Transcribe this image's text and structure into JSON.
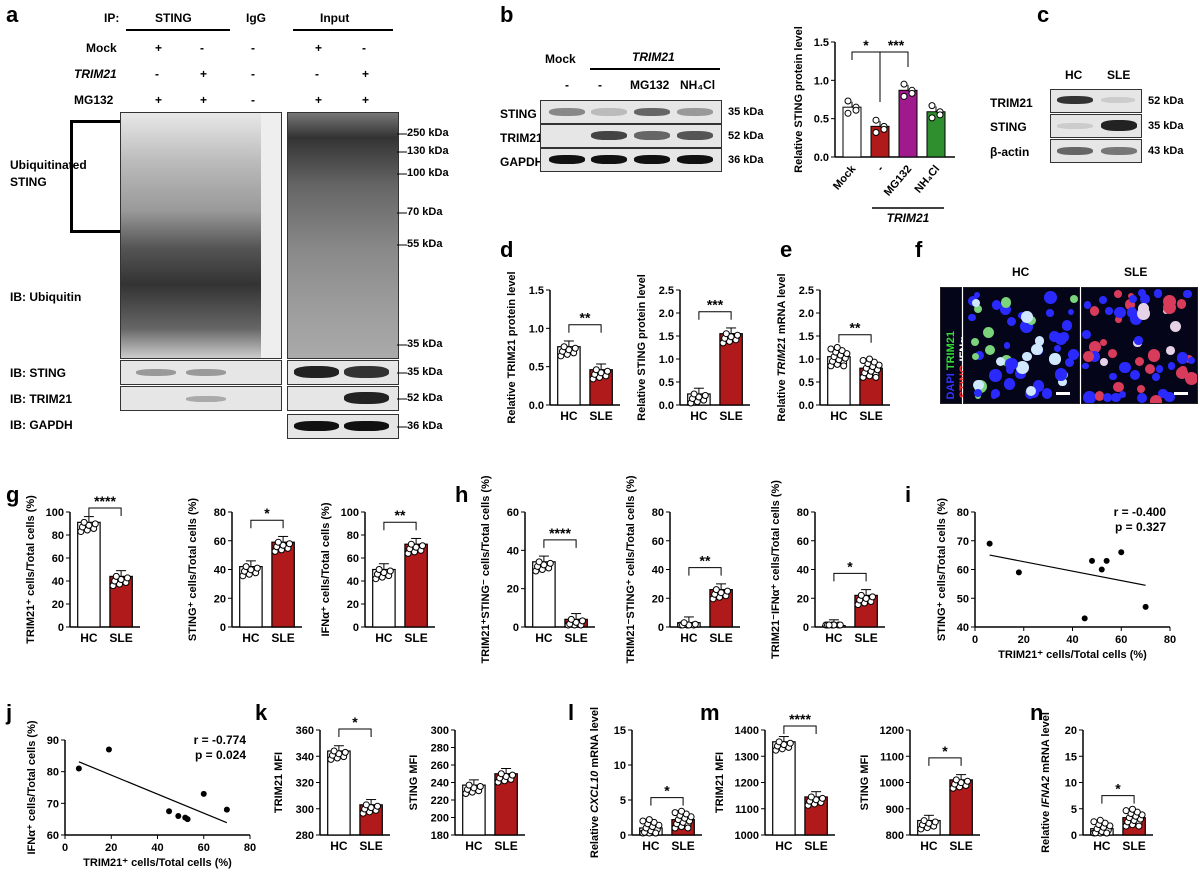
{
  "panel_letters": [
    "a",
    "b",
    "c",
    "d",
    "e",
    "f",
    "g",
    "h",
    "i",
    "j",
    "k",
    "l",
    "m",
    "n"
  ],
  "panel_a": {
    "ip_label": "IP:",
    "ip_groups": [
      "STING",
      "IgG",
      "Input"
    ],
    "row_labels": [
      "Mock",
      "TRIM21",
      "MG132"
    ],
    "row_values": [
      [
        "+",
        "-",
        "-",
        "+",
        "-"
      ],
      [
        "-",
        "+",
        "-",
        "-",
        "+"
      ],
      [
        "+",
        "+",
        "-",
        "+",
        "+"
      ]
    ],
    "left_labels": {
      "ub_sting": "Ubiquitinated STING",
      "ib_ub": "IB: Ubiquitin",
      "ib_sting": "IB: STING",
      "ib_trim21": "IB: TRIM21",
      "ib_gapdh": "IB: GAPDH"
    },
    "mw": [
      "250 kDa",
      "130 kDa",
      "100 kDa",
      "70 kDa",
      "55 kDa",
      "35 kDa",
      "35 kDa",
      "52 kDa",
      "36 kDa"
    ]
  },
  "panel_b": {
    "headers": [
      "Mock",
      "TRIM21"
    ],
    "lanes": [
      "-",
      "-",
      "MG132",
      "NH₄Cl"
    ],
    "rows": [
      "STING",
      "TRIM21",
      "GAPDH"
    ],
    "mw": [
      "35 kDa",
      "52 kDa",
      "36 kDa"
    ]
  },
  "panel_c": {
    "lanes": [
      "HC",
      "SLE"
    ],
    "rows": [
      "TRIM21",
      "STING",
      "β-actin"
    ],
    "mw": [
      "52 kDa",
      "35 kDa",
      "43 kDa"
    ]
  },
  "panel_f": {
    "headers": [
      "HC",
      "SLE"
    ],
    "legend": [
      "DAPI",
      "TRIM21",
      "STING",
      "IFNα"
    ],
    "colors": {
      "dapi": "#3333ff",
      "trim21": "#33dd33",
      "sting": "#ff3333",
      "ifna": "#ffffff"
    }
  },
  "colors": {
    "hc": "#ffffff",
    "sle": "#b01a1a",
    "mg132": "#a01a8e",
    "nh4cl": "#2f8f2f"
  },
  "chart_data": [
    {
      "id": "b",
      "type": "bar",
      "categories": [
        "Mock",
        "-",
        "MG132",
        "NH₄Cl"
      ],
      "values": [
        0.65,
        0.4,
        0.87,
        0.59
      ],
      "ylabel": "Relative STING protein level",
      "ylim": [
        0,
        1.5
      ],
      "yticks": [
        "0.0",
        "0.5",
        "1.0",
        "1.5"
      ],
      "sig": [
        "*",
        "***"
      ],
      "group_label": "TRIM21"
    },
    {
      "id": "d1",
      "type": "bar",
      "categories": [
        "HC",
        "SLE"
      ],
      "values": [
        0.76,
        0.46
      ],
      "ylabel": "Relative TRIM21 protein level",
      "ylim": [
        0,
        1.5
      ],
      "yticks": [
        "0.0",
        "0.5",
        "1.0",
        "1.5"
      ],
      "sig": "**"
    },
    {
      "id": "d2",
      "type": "bar",
      "categories": [
        "HC",
        "SLE"
      ],
      "values": [
        0.24,
        1.55
      ],
      "ylabel": "Relative STING protein level",
      "ylim": [
        0,
        2.5
      ],
      "yticks": [
        "0.0",
        "0.5",
        "1.0",
        "1.5",
        "2.0",
        "2.5"
      ],
      "sig": "***"
    },
    {
      "id": "e",
      "type": "bar",
      "categories": [
        "HC",
        "SLE"
      ],
      "values": [
        1.05,
        0.8
      ],
      "ylabel": "Relative TRIM21 mRNA level",
      "ylim": [
        0,
        2.5
      ],
      "yticks": [
        "0.0",
        "0.5",
        "1.0",
        "1.5",
        "2.0",
        "2.5"
      ],
      "sig": "**"
    },
    {
      "id": "g1",
      "type": "bar",
      "categories": [
        "HC",
        "SLE"
      ],
      "values": [
        91,
        44
      ],
      "ylabel": "TRIM21⁺ cells/Total cells (%)",
      "ylim": [
        0,
        100
      ],
      "yticks": [
        "0",
        "20",
        "40",
        "60",
        "80",
        "100"
      ],
      "sig": "****"
    },
    {
      "id": "g2",
      "type": "bar",
      "categories": [
        "HC",
        "SLE"
      ],
      "values": [
        42,
        59
      ],
      "ylabel": "STING⁺ cells/Total cells (%)",
      "ylim": [
        0,
        80
      ],
      "yticks": [
        "0",
        "20",
        "40",
        "60",
        "80"
      ],
      "sig": "*"
    },
    {
      "id": "g3",
      "type": "bar",
      "categories": [
        "HC",
        "SLE"
      ],
      "values": [
        50,
        72
      ],
      "ylabel": "IFNα⁺ cells/Total cells (%)",
      "ylim": [
        0,
        100
      ],
      "yticks": [
        "0",
        "20",
        "40",
        "60",
        "80",
        "100"
      ],
      "sig": "**"
    },
    {
      "id": "h1",
      "type": "bar",
      "categories": [
        "HC",
        "SLE"
      ],
      "values": [
        34,
        4
      ],
      "ylabel": "TRIM21⁺STING⁻ cells/Total cells (%)",
      "ylim": [
        0,
        60
      ],
      "yticks": [
        "0",
        "20",
        "40",
        "60"
      ],
      "sig": "****"
    },
    {
      "id": "h2",
      "type": "bar",
      "categories": [
        "HC",
        "SLE"
      ],
      "values": [
        3,
        26
      ],
      "ylabel": "TRIM21⁻STING⁺ cells/Total cells (%)",
      "ylim": [
        0,
        80
      ],
      "yticks": [
        "0",
        "20",
        "40",
        "60",
        "80"
      ],
      "sig": "**"
    },
    {
      "id": "h3",
      "type": "bar",
      "categories": [
        "HC",
        "SLE"
      ],
      "values": [
        1,
        22
      ],
      "ylabel": "TRIM21⁻IFNα⁺ cells/Total cells (%)",
      "ylim": [
        0,
        80
      ],
      "yticks": [
        "0",
        "20",
        "40",
        "60",
        "80"
      ],
      "sig": "*"
    },
    {
      "id": "i",
      "type": "scatter",
      "x": [
        6,
        18,
        45,
        48,
        52,
        54,
        60,
        70
      ],
      "y": [
        69,
        59,
        43,
        63,
        60,
        63,
        66,
        47
      ],
      "xlabel": "TRIM21⁺ cells/Total cells (%)",
      "ylabel": "STING⁺ cells/Total cells (%)",
      "xlim": [
        0,
        80
      ],
      "ylim": [
        40,
        80
      ],
      "xticks": [
        "0",
        "20",
        "40",
        "60",
        "80"
      ],
      "yticks": [
        "40",
        "50",
        "60",
        "70",
        "80"
      ],
      "r": "r = -0.400",
      "p": "p = 0.327"
    },
    {
      "id": "j",
      "type": "scatter",
      "x": [
        6,
        19,
        45,
        49,
        52,
        53,
        60,
        70
      ],
      "y": [
        81,
        87,
        67.5,
        66,
        65.5,
        65,
        73,
        68
      ],
      "xlabel": "TRIM21⁺ cells/Total cells (%)",
      "ylabel": "IFNα⁺ cells/Total cells (%)",
      "xlim": [
        0,
        80
      ],
      "ylim": [
        60,
        90
      ],
      "xticks": [
        "0",
        "20",
        "40",
        "60",
        "80"
      ],
      "yticks": [
        "60",
        "70",
        "80",
        "90"
      ],
      "r": "r = -0.774",
      "p": "p = 0.024"
    },
    {
      "id": "k1",
      "type": "bar",
      "categories": [
        "HC",
        "SLE"
      ],
      "values": [
        344,
        303
      ],
      "ylabel": "TRIM21 MFI",
      "ylim": [
        280,
        360
      ],
      "yticks": [
        "280",
        "300",
        "320",
        "340",
        "360"
      ],
      "sig": "*"
    },
    {
      "id": "k2",
      "type": "bar",
      "categories": [
        "HC",
        "SLE"
      ],
      "values": [
        237,
        250
      ],
      "ylabel": "STING MFI",
      "ylim": [
        180,
        300
      ],
      "yticks": [
        "180",
        "200",
        "220",
        "240",
        "260",
        "280",
        "300"
      ],
      "sig": ""
    },
    {
      "id": "l",
      "type": "bar",
      "categories": [
        "HC",
        "SLE"
      ],
      "values": [
        1,
        2.2
      ],
      "ylabel": "Relative CXCL10 mRNA level",
      "ylim": [
        0,
        15
      ],
      "yticks": [
        "0",
        "5",
        "10",
        "15"
      ],
      "sig": "*"
    },
    {
      "id": "m1",
      "type": "bar",
      "categories": [
        "HC",
        "SLE"
      ],
      "values": [
        1355,
        1145
      ],
      "ylabel": "TRIM21 MFI",
      "ylim": [
        1000,
        1400
      ],
      "yticks": [
        "1000",
        "1100",
        "1200",
        "1300",
        "1400"
      ],
      "sig": "****"
    },
    {
      "id": "m2",
      "type": "bar",
      "categories": [
        "HC",
        "SLE"
      ],
      "values": [
        855,
        1010
      ],
      "ylabel": "STING MFI",
      "ylim": [
        800,
        1200
      ],
      "yticks": [
        "800",
        "900",
        "1000",
        "1100",
        "1200"
      ],
      "sig": "*"
    },
    {
      "id": "n",
      "type": "bar",
      "categories": [
        "HC",
        "SLE"
      ],
      "values": [
        1.2,
        3.3
      ],
      "ylabel": "Relative IFNA2 mRNA level",
      "ylim": [
        0,
        20
      ],
      "yticks": [
        "0",
        "5",
        "10",
        "15",
        "20"
      ],
      "sig": "*"
    }
  ]
}
